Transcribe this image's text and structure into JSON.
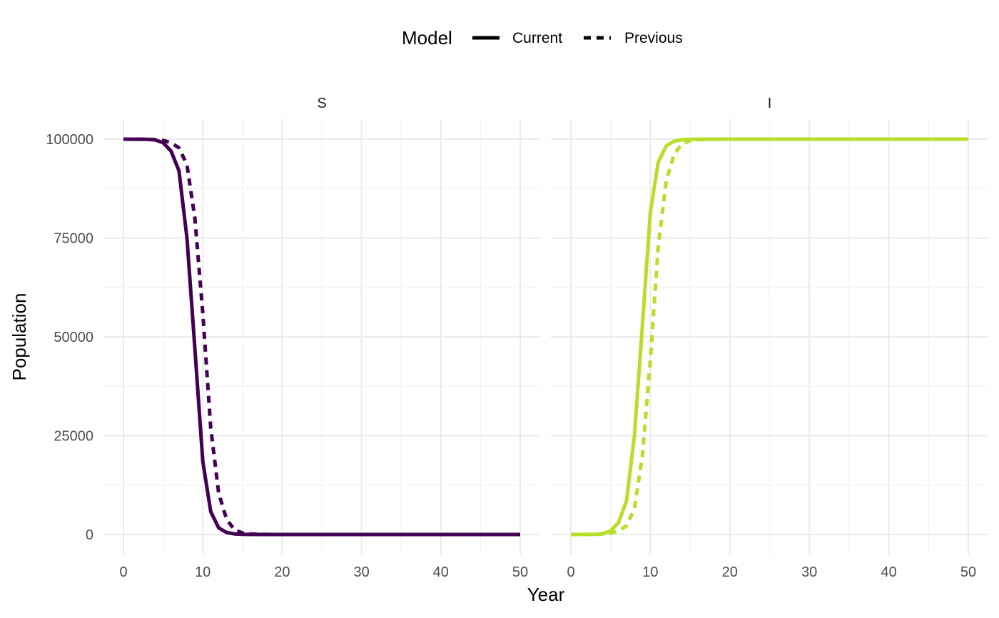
{
  "chart_data": {
    "type": "line",
    "xlabel": "Year",
    "ylabel": "Population",
    "xlim": [
      0,
      50
    ],
    "ylim": [
      0,
      100000
    ],
    "x_ticks": [
      "0",
      "10",
      "20",
      "30",
      "40",
      "50"
    ],
    "y_ticks": [
      "0",
      "25000",
      "50000",
      "75000",
      "100000"
    ],
    "grid": true,
    "legend": {
      "title": "Model",
      "position": "top",
      "items": [
        {
          "label": "Current",
          "linetype": "solid"
        },
        {
          "label": "Previous",
          "linetype": "dashed"
        }
      ]
    },
    "panels": [
      {
        "strip": "S",
        "color": "#440154",
        "series": [
          {
            "name": "Current",
            "x": [
              0,
              1,
              2,
              3,
              4,
              5,
              6,
              7,
              8,
              9,
              10,
              11,
              12,
              13,
              14,
              15,
              16,
              18,
              20,
              25,
              30,
              35,
              40,
              45,
              50
            ],
            "values": [
              100000,
              99990,
              99980,
              99950,
              99800,
              99100,
              97000,
              92000,
              75000,
              47000,
              18500,
              5800,
              1700,
              500,
              150,
              50,
              20,
              5,
              0,
              0,
              0,
              0,
              0,
              0,
              0
            ]
          },
          {
            "name": "Previous",
            "x": [
              0,
              1,
              2,
              3,
              4,
              5,
              6,
              7,
              8,
              9,
              10,
              11,
              12,
              13,
              14,
              15,
              16,
              18,
              20,
              25,
              30,
              35,
              40,
              45,
              50
            ],
            "values": [
              100000,
              99995,
              99990,
              99980,
              99900,
              99700,
              99100,
              97800,
              93500,
              80000,
              56000,
              27000,
              10500,
              3800,
              1200,
              400,
              130,
              20,
              0,
              0,
              0,
              0,
              0,
              0,
              0
            ]
          }
        ]
      },
      {
        "strip": "I",
        "color": "#b8de29",
        "series": [
          {
            "name": "Current",
            "x": [
              0,
              1,
              2,
              3,
              4,
              5,
              6,
              7,
              8,
              9,
              10,
              11,
              12,
              13,
              14,
              15,
              16,
              18,
              20,
              25,
              30,
              35,
              40,
              45,
              50
            ],
            "values": [
              0,
              10,
              20,
              50,
              200,
              900,
              3000,
              8500,
              25000,
              53000,
              81500,
              94200,
              98300,
              99500,
              99850,
              99950,
              99980,
              99995,
              100000,
              100000,
              100000,
              100000,
              100000,
              100000,
              100000
            ]
          },
          {
            "name": "Previous",
            "x": [
              0,
              1,
              2,
              3,
              4,
              5,
              6,
              7,
              8,
              9,
              10,
              11,
              12,
              13,
              14,
              15,
              16,
              18,
              20,
              25,
              30,
              35,
              40,
              45,
              50
            ],
            "values": [
              0,
              5,
              10,
              20,
              100,
              300,
              900,
              2200,
              6500,
              20000,
              44000,
              73000,
              89500,
              96200,
              98800,
              99600,
              99870,
              99980,
              100000,
              100000,
              100000,
              100000,
              100000,
              100000,
              100000
            ]
          }
        ]
      }
    ]
  }
}
